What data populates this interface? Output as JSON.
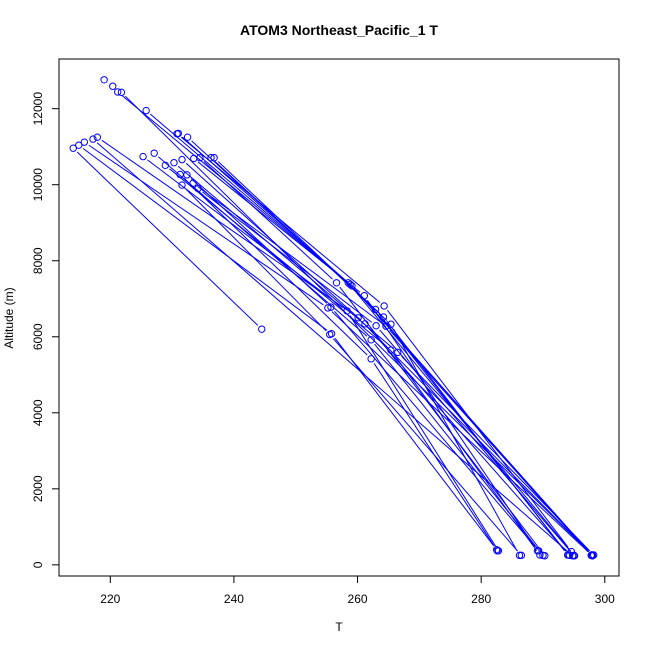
{
  "chart_data": {
    "type": "scatter",
    "title": "ATOM3 Northeast_Pacific_1 T",
    "xlabel": "T",
    "ylabel": "Altitude (m)",
    "xlim": [
      211.7,
      302.3
    ],
    "ylim": [
      -293,
      13307
    ],
    "xticks": [
      220,
      240,
      260,
      280,
      300
    ],
    "yticks": [
      0,
      2000,
      4000,
      6000,
      8000,
      10000,
      12000
    ],
    "grid": false,
    "marker": "open-circle",
    "color": "#0000ff",
    "series": [
      {
        "points": [
          [
            219.0,
            12760
          ],
          [
            220.4,
            12590
          ],
          [
            221.8,
            12430
          ],
          [
            298.0,
            250
          ]
        ]
      },
      {
        "points": [
          [
            221.2,
            12440
          ],
          [
            258.8,
            7380
          ],
          [
            298.0,
            240
          ]
        ]
      },
      {
        "points": [
          [
            225.8,
            11950
          ],
          [
            259.1,
            7340
          ],
          [
            297.9,
            260
          ]
        ]
      },
      {
        "points": [
          [
            231.0,
            11350
          ],
          [
            258.5,
            7420
          ],
          [
            295.1,
            240
          ]
        ]
      },
      {
        "points": [
          [
            232.5,
            11250
          ],
          [
            262.9,
            6720
          ],
          [
            294.1,
            260
          ]
        ]
      },
      {
        "points": [
          [
            230.8,
            11340
          ],
          [
            264.3,
            6810
          ],
          [
            294.6,
            350
          ]
        ]
      },
      {
        "points": [
          [
            233.5,
            10690
          ],
          [
            261.1,
            7080
          ],
          [
            289.1,
            370
          ]
        ]
      },
      {
        "points": [
          [
            234.5,
            10710
          ],
          [
            256.6,
            7420
          ],
          [
            290.3,
            240
          ]
        ]
      },
      {
        "points": [
          [
            236.3,
            10710
          ],
          [
            265.4,
            6330
          ],
          [
            286.2,
            250
          ]
        ]
      },
      {
        "points": [
          [
            236.8,
            10710
          ],
          [
            264.2,
            6520
          ],
          [
            294.0,
            260
          ]
        ]
      },
      {
        "points": [
          [
            225.3,
            10740
          ],
          [
            258.3,
            6680
          ],
          [
            282.8,
            370
          ]
        ]
      },
      {
        "points": [
          [
            227.1,
            10830
          ],
          [
            262.2,
            5920
          ],
          [
            290.0,
            250
          ]
        ]
      },
      {
        "points": [
          [
            228.9,
            10510
          ],
          [
            265.4,
            5650
          ],
          [
            289.5,
            260
          ]
        ]
      },
      {
        "points": [
          [
            231.6,
            10660
          ],
          [
            261.2,
            6340
          ],
          [
            294.3,
            250
          ]
        ]
      },
      {
        "points": [
          [
            230.3,
            10580
          ],
          [
            266.5,
            5590
          ],
          [
            298.2,
            260
          ]
        ]
      },
      {
        "points": [
          [
            231.3,
            10270
          ],
          [
            262.2,
            5420
          ],
          [
            282.6,
            370
          ]
        ]
      },
      {
        "points": [
          [
            232.4,
            10260
          ],
          [
            255.7,
            6780
          ],
          [
            289.3,
            370
          ]
        ]
      },
      {
        "points": [
          [
            231.6,
            9990
          ],
          [
            255.5,
            6060
          ],
          [
            286.5,
            250
          ]
        ]
      },
      {
        "points": [
          [
            233.4,
            10040
          ],
          [
            264.6,
            6280
          ],
          [
            297.8,
            250
          ]
        ]
      },
      {
        "points": [
          [
            234.2,
            9900
          ],
          [
            263.0,
            6290
          ],
          [
            295.0,
            250
          ]
        ]
      },
      {
        "points": [
          [
            214.0,
            10960
          ],
          [
            244.5,
            6200
          ]
        ]
      },
      {
        "points": [
          [
            214.9,
            11040
          ],
          [
            255.8,
            6080
          ],
          [
            282.5,
            400
          ]
        ]
      },
      {
        "points": [
          [
            215.8,
            11120
          ],
          [
            255.2,
            6760
          ],
          [
            298.0,
            240
          ]
        ]
      },
      {
        "points": [
          [
            217.2,
            11200
          ],
          [
            294.8,
            240
          ]
        ]
      },
      {
        "points": [
          [
            217.9,
            11250
          ],
          [
            260.1,
            6500
          ],
          [
            297.9,
            260
          ]
        ]
      }
    ]
  }
}
